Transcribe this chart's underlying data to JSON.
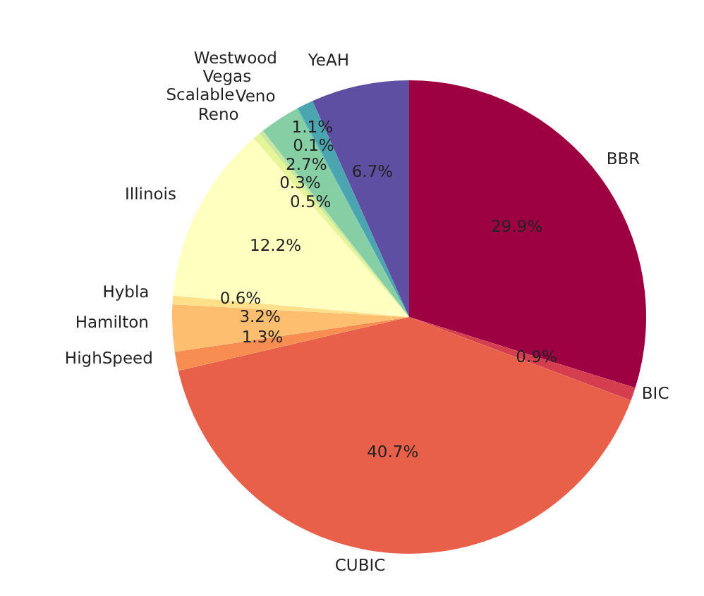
{
  "chart_data": {
    "type": "pie",
    "categories": [
      "BBR",
      "BIC",
      "CUBIC",
      "HighSpeed",
      "Hamilton",
      "Hybla",
      "Illinois",
      "Reno",
      "Scalable",
      "Vegas",
      "Veno",
      "Westwood",
      "YeAH"
    ],
    "values": [
      29.9,
      0.9,
      40.7,
      1.3,
      3.2,
      0.6,
      12.2,
      0.5,
      0.3,
      2.7,
      0.1,
      1.1,
      6.7
    ],
    "colors": [
      "#9e0142",
      "#d53e4f",
      "#e8604a",
      "#f88d52",
      "#fdbe6f",
      "#fee08b",
      "#ffffbf",
      "#e6f598",
      "#c6e8a0",
      "#86cfa5",
      "#66c2a5",
      "#4aa5b0",
      "#5e4fa2"
    ],
    "value_labels": [
      "29.9%",
      "0.9%",
      "40.7%",
      "1.3%",
      "3.2%",
      "0.6%",
      "12.2%",
      "0.5%",
      "0.3%",
      "2.7%",
      "0.1%",
      "1.1%",
      "6.7%"
    ]
  }
}
